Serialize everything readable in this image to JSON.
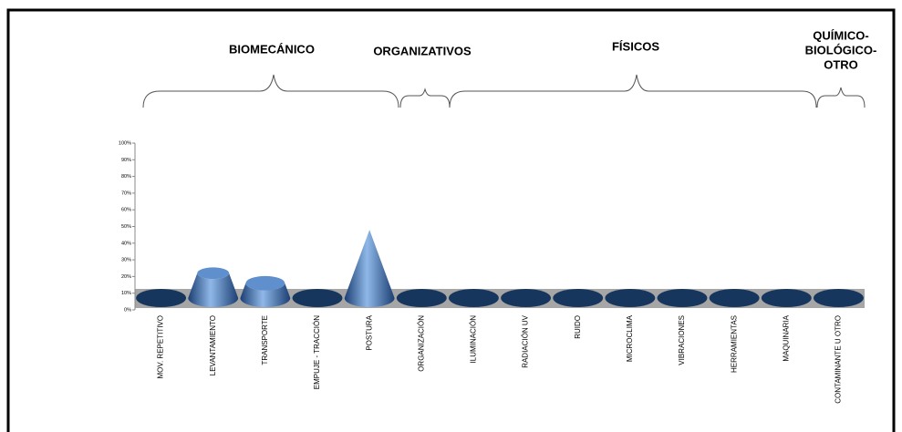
{
  "chart_data": {
    "type": "cone",
    "groups": [
      {
        "lines": [
          "BIOMECÁNICO"
        ]
      },
      {
        "lines": [
          "ORGANIZATIVOS"
        ]
      },
      {
        "lines": [
          "FÍSICOS"
        ]
      },
      {
        "lines": [
          "QUÍMICO-",
          "BIOLÓGICO-",
          "OTRO"
        ]
      }
    ],
    "categories": [
      "MOV. REPETITIVO",
      "LEVANTAMIENTO",
      "TRANSPORTE",
      "EMPUJE - TRACCIÓN",
      "POSTURA",
      "ORGANIZACIÓN",
      "ILUMINACIÓN",
      "RADIACIÓN UV",
      "RUIDO",
      "MICROCLIMA",
      "VIBRACIONES",
      "HERRAMIENTAS",
      "MAQUINARIA",
      "CONTAMINANTE U OTRO"
    ],
    "values": [
      0,
      22,
      16,
      0,
      48,
      0,
      0,
      0,
      0,
      0,
      0,
      0,
      0,
      0
    ],
    "color": "#2e63a8",
    "ylim": [
      0,
      100
    ],
    "yticks": [
      {
        "value": 0,
        "label": "0%"
      },
      {
        "value": 10,
        "label": "10%"
      },
      {
        "value": 20,
        "label": "20%"
      },
      {
        "value": 30,
        "label": "30%"
      },
      {
        "value": 40,
        "label": "40%"
      },
      {
        "value": 50,
        "label": "50%"
      },
      {
        "value": 60,
        "label": "60%"
      },
      {
        "value": 70,
        "label": "70%"
      },
      {
        "value": 80,
        "label": "80%"
      },
      {
        "value": 90,
        "label": "90%"
      },
      {
        "value": 100,
        "label": "100%"
      }
    ]
  }
}
